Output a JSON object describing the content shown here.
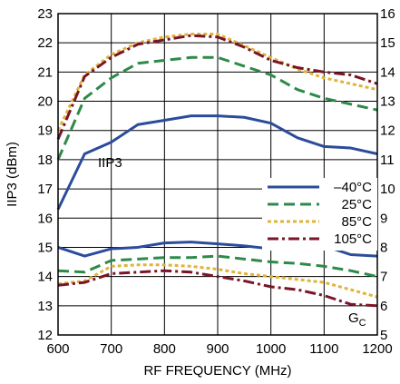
{
  "chart_data": {
    "type": "line",
    "title": "",
    "xlabel": "RF FREQUENCY (MHz)",
    "ylabel": "IIP3 (dBm)",
    "y2label": "",
    "xlim": [
      600,
      1200
    ],
    "ylim": [
      12,
      23
    ],
    "y2lim": [
      5,
      16
    ],
    "x_ticks": [
      "600",
      "700",
      "800",
      "900",
      "1000",
      "1100",
      "1200"
    ],
    "y_ticks": [
      "12",
      "13",
      "14",
      "15",
      "16",
      "17",
      "18",
      "19",
      "20",
      "21",
      "22",
      "23"
    ],
    "y2_ticks": [
      "5",
      "6",
      "7",
      "8",
      "9",
      "10",
      "11",
      "12",
      "13",
      "14",
      "15",
      "16"
    ],
    "grid": true,
    "legend_position": "center-right",
    "annotations": [
      "IIP3",
      "G",
      "C"
    ],
    "x": [
      600,
      650,
      700,
      750,
      800,
      850,
      900,
      950,
      1000,
      1050,
      1100,
      1150,
      1200
    ],
    "series": [
      {
        "name": "–40°C",
        "color": "#2b4c9b",
        "dash": "solid",
        "iip3": [
          16.3,
          18.2,
          18.6,
          19.2,
          19.35,
          19.5,
          19.5,
          19.45,
          19.25,
          18.75,
          18.45,
          18.4,
          18.2
        ],
        "gc": [
          8.0,
          7.7,
          7.95,
          8.0,
          8.15,
          8.18,
          8.12,
          8.05,
          7.95,
          8.1,
          8.05,
          7.75,
          7.7
        ]
      },
      {
        "name": "25°C",
        "color": "#2d8a48",
        "dash": "dashed",
        "iip3": [
          18.0,
          20.1,
          20.8,
          21.3,
          21.4,
          21.5,
          21.5,
          21.2,
          20.9,
          20.4,
          20.1,
          19.9,
          19.7
        ],
        "gc": [
          7.2,
          7.15,
          7.55,
          7.6,
          7.65,
          7.65,
          7.7,
          7.6,
          7.5,
          7.45,
          7.35,
          7.2,
          7.0
        ]
      },
      {
        "name": "85°C",
        "color": "#e0b43a",
        "dash": "dotted",
        "iip3": [
          19.0,
          20.9,
          21.6,
          22.0,
          22.2,
          22.3,
          22.3,
          21.9,
          21.5,
          21.1,
          20.8,
          20.6,
          20.4
        ],
        "gc": [
          6.75,
          6.85,
          7.35,
          7.4,
          7.4,
          7.35,
          7.25,
          7.1,
          7.0,
          6.9,
          6.8,
          6.55,
          6.3
        ]
      },
      {
        "name": "105°C",
        "color": "#7a1426",
        "dash": "dashdot",
        "iip3": [
          18.7,
          20.85,
          21.5,
          21.95,
          22.1,
          22.25,
          22.2,
          21.85,
          21.4,
          21.15,
          21.0,
          20.9,
          20.6
        ],
        "gc": [
          6.7,
          6.8,
          7.1,
          7.15,
          7.2,
          7.15,
          7.0,
          6.85,
          6.65,
          6.55,
          6.35,
          6.05,
          6.0
        ]
      }
    ]
  }
}
